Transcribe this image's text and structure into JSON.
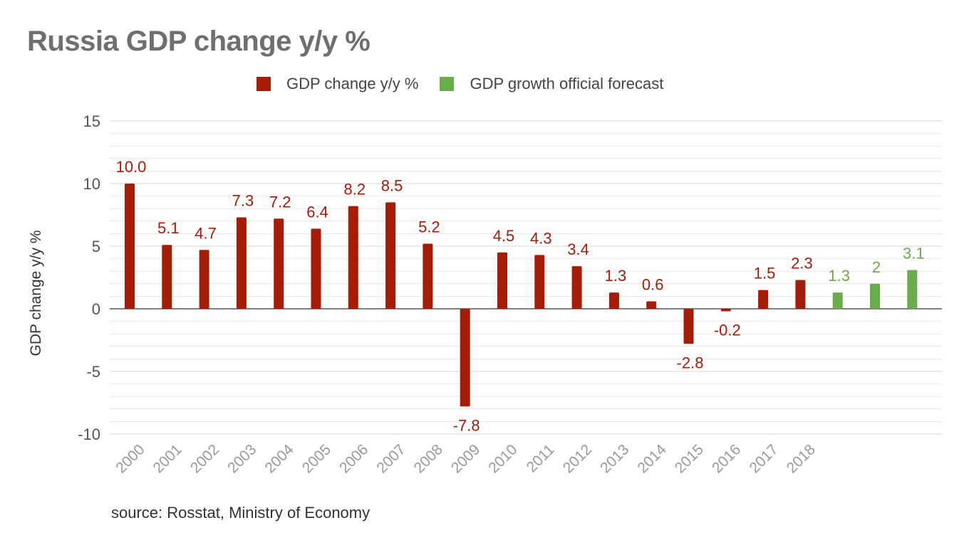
{
  "title": "Russia GDP change y/y %",
  "legend": {
    "actual_label": "GDP change y/y %",
    "forecast_label": "GDP growth official forecast"
  },
  "source": "source: Rosstat, Ministry of Economy",
  "colors": {
    "actual": "#a51c07",
    "forecast": "#6aab4a"
  },
  "chart_data": {
    "type": "bar",
    "title": "Russia GDP change y/y %",
    "ylabel": "GDP change y/y %",
    "xlabel": "",
    "ylim": [
      -10,
      15
    ],
    "yticks": [
      15,
      10,
      5,
      0,
      -5,
      -10
    ],
    "grid": true,
    "legend_position": "top-center",
    "category_labels": [
      "2000",
      "2001",
      "2002",
      "2003",
      "2004",
      "2005",
      "2006",
      "2007",
      "2008",
      "2009",
      "2010",
      "2011",
      "2012",
      "2013",
      "2014",
      "2015",
      "2016",
      "2017",
      "2018"
    ],
    "bars": [
      {
        "value": 10.0,
        "label": "10.0",
        "series": "actual"
      },
      {
        "value": 5.1,
        "label": "5.1",
        "series": "actual"
      },
      {
        "value": 4.7,
        "label": "4.7",
        "series": "actual"
      },
      {
        "value": 7.3,
        "label": "7.3",
        "series": "actual"
      },
      {
        "value": 7.2,
        "label": "7.2",
        "series": "actual"
      },
      {
        "value": 6.4,
        "label": "6.4",
        "series": "actual"
      },
      {
        "value": 8.2,
        "label": "8.2",
        "series": "actual"
      },
      {
        "value": 8.5,
        "label": "8.5",
        "series": "actual"
      },
      {
        "value": 5.2,
        "label": "5.2",
        "series": "actual"
      },
      {
        "value": -7.8,
        "label": "-7.8",
        "series": "actual"
      },
      {
        "value": 4.5,
        "label": "4.5",
        "series": "actual"
      },
      {
        "value": 4.3,
        "label": "4.3",
        "series": "actual"
      },
      {
        "value": 3.4,
        "label": "3.4",
        "series": "actual"
      },
      {
        "value": 1.3,
        "label": "1.3",
        "series": "actual"
      },
      {
        "value": 0.6,
        "label": "0.6",
        "series": "actual"
      },
      {
        "value": -2.8,
        "label": "-2.8",
        "series": "actual"
      },
      {
        "value": -0.2,
        "label": "-0.2",
        "series": "actual"
      },
      {
        "value": 1.5,
        "label": "1.5",
        "series": "actual"
      },
      {
        "value": 2.3,
        "label": "2.3",
        "series": "actual"
      },
      {
        "value": 1.3,
        "label": "1.3",
        "series": "forecast"
      },
      {
        "value": 2.0,
        "label": "2",
        "series": "forecast"
      },
      {
        "value": 3.1,
        "label": "3.1",
        "series": "forecast"
      }
    ]
  }
}
